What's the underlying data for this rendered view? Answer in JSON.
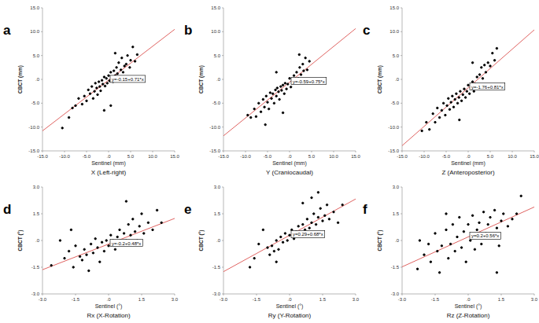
{
  "chart_data": [
    {
      "type": "scatter",
      "panel_label": "a",
      "title": "X (Left-right)",
      "x_label": "Sentinel (mm)",
      "y_label": "CBCT (mm)",
      "annotation": "y=-0.15+0.71*x",
      "fit": {
        "intercept": -0.15,
        "slope": 0.71,
        "color": "#e06462"
      },
      "color": "#000000",
      "marker": "circle",
      "grid": false,
      "xlim": [
        -15,
        15
      ],
      "ylim": [
        -15,
        15
      ],
      "xticks": [
        {
          "value": -15,
          "label": "-15.0"
        },
        {
          "value": -10,
          "label": "-10.0"
        },
        {
          "value": -5,
          "label": "-5.0"
        },
        {
          "value": 0,
          "label": ".0"
        },
        {
          "value": 5,
          "label": "5.0"
        },
        {
          "value": 10,
          "label": "10.0"
        },
        {
          "value": 15,
          "label": "15.0"
        }
      ],
      "yticks": [
        {
          "value": -15,
          "label": "-15.0"
        },
        {
          "value": -10,
          "label": "-10.0"
        },
        {
          "value": -5,
          "label": "-5.0"
        },
        {
          "value": 0,
          "label": ".0"
        },
        {
          "value": 5,
          "label": "5.0"
        },
        {
          "value": 10,
          "label": "10.0"
        },
        {
          "value": 15,
          "label": "15.0"
        }
      ],
      "x": [
        -10.5,
        -9.0,
        -8.2,
        -7.5,
        -6.8,
        -6.0,
        -5.5,
        -5.0,
        -4.6,
        -4.2,
        -3.8,
        -3.5,
        -3.2,
        -3.0,
        -2.7,
        -2.5,
        -2.2,
        -2.0,
        -1.8,
        -1.5,
        -1.3,
        -1.0,
        -0.8,
        -0.5,
        -0.3,
        0,
        0.2,
        0.5,
        0.8,
        1.0,
        1.2,
        1.5,
        1.8,
        2.0,
        2.3,
        2.5,
        2.8,
        3.0,
        3.3,
        3.6,
        4.0,
        4.3,
        4.8,
        5.0,
        5.5,
        6.0,
        6.5,
        1.5,
        -1.0,
        0.5
      ],
      "values": [
        -10.2,
        -8.0,
        -6.0,
        -5.5,
        -4.0,
        -5.2,
        -3.5,
        -4.5,
        -2.2,
        -3.0,
        -1.5,
        -4.0,
        -2.5,
        -0.8,
        -1.8,
        -3.2,
        -0.5,
        -1.5,
        -2.4,
        -0.2,
        -1.0,
        0.5,
        -1.4,
        0.2,
        -0.8,
        0.8,
        -0.3,
        1.5,
        0.3,
        -0.5,
        1.8,
        0.8,
        2.5,
        1.2,
        3.5,
        0.5,
        2.0,
        4.5,
        1.5,
        2.8,
        3.2,
        5.0,
        2.5,
        4.0,
        6.8,
        3.8,
        5.2,
        5.5,
        -6.5,
        -5.5
      ]
    },
    {
      "type": "scatter",
      "panel_label": "b",
      "title": "Y (Craniocaudal)",
      "x_label": "Sentinel (mm)",
      "y_label": "CBCT (mm)",
      "annotation": "y=-0.59+0.75*x",
      "fit": {
        "intercept": -0.59,
        "slope": 0.75,
        "color": "#e06462"
      },
      "color": "#000000",
      "marker": "circle",
      "grid": false,
      "xlim": [
        -15,
        15
      ],
      "ylim": [
        -15,
        15
      ],
      "xticks": [
        {
          "value": -15,
          "label": "-15.0"
        },
        {
          "value": -10,
          "label": "-10.0"
        },
        {
          "value": -5,
          "label": "-5.0"
        },
        {
          "value": 0,
          "label": ".0"
        },
        {
          "value": 5,
          "label": "5.0"
        },
        {
          "value": 10,
          "label": "10.0"
        },
        {
          "value": 15,
          "label": "15.0"
        }
      ],
      "yticks": [
        {
          "value": -15,
          "label": "-15.0"
        },
        {
          "value": -10,
          "label": "-10.0"
        },
        {
          "value": -5,
          "label": "-5.0"
        },
        {
          "value": 0,
          "label": ".0"
        },
        {
          "value": 5,
          "label": "5.0"
        },
        {
          "value": 10,
          "label": "10.0"
        },
        {
          "value": 15,
          "label": "15.0"
        }
      ],
      "x": [
        -9.5,
        -8.8,
        -8.0,
        -7.6,
        -7.0,
        -6.5,
        -6.0,
        -5.7,
        -5.3,
        -5.0,
        -4.7,
        -4.4,
        -4.1,
        -3.8,
        -3.5,
        -3.2,
        -3.0,
        -2.8,
        -2.5,
        -2.3,
        -2.0,
        -1.8,
        -1.5,
        -1.2,
        -1.0,
        -0.7,
        -0.4,
        0,
        0.3,
        0.6,
        1.0,
        1.3,
        1.6,
        2.0,
        2.3,
        2.6,
        3.0,
        3.2,
        3.6,
        4.0,
        4.5,
        2.2,
        -3.0,
        -5.5,
        -1.5
      ],
      "values": [
        -7.5,
        -8.0,
        -6.2,
        -7.8,
        -5.0,
        -6.8,
        -4.2,
        -5.8,
        -3.5,
        -4.8,
        -6.2,
        -2.8,
        -4.0,
        -3.0,
        -5.0,
        -2.2,
        -3.5,
        -1.8,
        -2.6,
        -4.2,
        -1.5,
        -2.3,
        -1.2,
        -3.0,
        -0.8,
        -2.0,
        -1.0,
        0.2,
        -1.6,
        -0.4,
        0.8,
        -0.5,
        1.5,
        0.2,
        2.5,
        1.0,
        3.2,
        1.8,
        4.5,
        2.0,
        3.8,
        5.2,
        1.5,
        -9.5,
        -7.0
      ]
    },
    {
      "type": "scatter",
      "panel_label": "c",
      "title": "Z (Anteroposterior)",
      "x_label": "Sentinel (mm)",
      "y_label": "CBCT (mm)",
      "annotation": "y=-1.76+0.81*x",
      "fit": {
        "intercept": -1.76,
        "slope": 0.81,
        "color": "#e06462"
      },
      "color": "#000000",
      "marker": "circle",
      "grid": false,
      "xlim": [
        -15,
        15
      ],
      "ylim": [
        -15,
        15
      ],
      "xticks": [
        {
          "value": -15,
          "label": "-15.0"
        },
        {
          "value": -10,
          "label": "-10.0"
        },
        {
          "value": -5,
          "label": "-5.0"
        },
        {
          "value": 0,
          "label": ".0"
        },
        {
          "value": 5,
          "label": "5.0"
        },
        {
          "value": 10,
          "label": "10.0"
        },
        {
          "value": 15,
          "label": "15.0"
        }
      ],
      "yticks": [
        {
          "value": -15,
          "label": "-15.0"
        },
        {
          "value": -10,
          "label": "-10.0"
        },
        {
          "value": -5,
          "label": "-5.0"
        },
        {
          "value": 0,
          "label": ".0"
        },
        {
          "value": 5,
          "label": "5.0"
        },
        {
          "value": 10,
          "label": "10.0"
        },
        {
          "value": 15,
          "label": "15.0"
        }
      ],
      "x": [
        -10.5,
        -9.5,
        -8.8,
        -8.0,
        -7.5,
        -7.0,
        -6.5,
        -6.0,
        -5.6,
        -5.2,
        -4.8,
        -4.5,
        -4.2,
        -3.9,
        -3.6,
        -3.3,
        -3.0,
        -2.7,
        -2.4,
        -2.1,
        -1.8,
        -1.5,
        -1.2,
        -0.9,
        -0.6,
        -0.3,
        0,
        0.3,
        0.6,
        1.0,
        1.3,
        1.6,
        2.0,
        2.3,
        2.6,
        3.0,
        3.3,
        3.7,
        4.0,
        4.5,
        5.0,
        5.5,
        6.0,
        6.5,
        1.0,
        -2.0
      ],
      "values": [
        -10.8,
        -9.0,
        -10.5,
        -7.2,
        -9.0,
        -6.0,
        -8.0,
        -6.5,
        -5.0,
        -7.5,
        -5.5,
        -4.0,
        -6.3,
        -4.8,
        -3.5,
        -5.8,
        -4.2,
        -3.0,
        -5.0,
        -3.8,
        -2.5,
        -4.5,
        -3.2,
        -2.0,
        -3.8,
        -2.5,
        -1.2,
        -3.0,
        -1.8,
        -0.5,
        -2.5,
        -1.0,
        0.5,
        -1.5,
        1.0,
        2.5,
        0.2,
        3.0,
        1.5,
        3.5,
        2.8,
        5.5,
        4.0,
        6.5,
        3.5,
        -8.5
      ]
    },
    {
      "type": "scatter",
      "panel_label": "d",
      "title": "Rx (X-Rotation)",
      "x_label": "Sentinel (°)",
      "y_label": "CBCT (°)",
      "annotation": "y=-0.2+0.48*x",
      "fit": {
        "intercept": -0.2,
        "slope": 0.48,
        "color": "#e06462"
      },
      "color": "#000000",
      "marker": "circle",
      "grid": false,
      "xlim": [
        -3,
        3
      ],
      "ylim": [
        -3,
        3
      ],
      "xticks": [
        {
          "value": -3,
          "label": "-3.0"
        },
        {
          "value": -1.5,
          "label": "-1.5"
        },
        {
          "value": 0,
          "label": ".0"
        },
        {
          "value": 1.5,
          "label": "1.5"
        },
        {
          "value": 3,
          "label": "3.0"
        }
      ],
      "yticks": [
        {
          "value": -3,
          "label": "-3.0"
        },
        {
          "value": -1.5,
          "label": "-1.5"
        },
        {
          "value": 0,
          "label": ".0"
        },
        {
          "value": 1.5,
          "label": "1.5"
        },
        {
          "value": 3,
          "label": "3.0"
        }
      ],
      "x": [
        -2.6,
        -2.2,
        -2.0,
        -1.8,
        -1.6,
        -1.5,
        -1.3,
        -1.2,
        -1.1,
        -1.0,
        -0.9,
        -0.8,
        -0.7,
        -0.6,
        -0.5,
        -0.4,
        -0.3,
        -0.2,
        -0.1,
        0,
        0.1,
        0.2,
        0.3,
        0.4,
        0.5,
        0.6,
        0.7,
        0.8,
        0.9,
        1.0,
        1.1,
        1.2,
        1.3,
        1.4,
        1.5,
        1.6,
        1.8,
        2.0,
        2.2,
        2.4,
        0.8,
        -1.7
      ],
      "values": [
        -1.4,
        0.0,
        -1.0,
        -0.6,
        -1.5,
        -0.3,
        -0.9,
        -1.1,
        -0.5,
        -0.8,
        -1.7,
        -0.2,
        -0.7,
        0.1,
        -0.4,
        -1.2,
        -0.1,
        -0.6,
        0.0,
        -0.3,
        0.3,
        0.0,
        -0.5,
        0.2,
        0.6,
        -0.2,
        0.4,
        0.0,
        0.9,
        0.3,
        1.2,
        0.5,
        0.0,
        0.8,
        1.5,
        0.4,
        1.0,
        0.6,
        1.7,
        1.0,
        2.2,
        0.6
      ]
    },
    {
      "type": "scatter",
      "panel_label": "e",
      "title": "Ry (Y-Rotation)",
      "x_label": "Sentinel (°)",
      "y_label": "CBCT (°)",
      "annotation": "y=0.29+0.68*x",
      "fit": {
        "intercept": 0.29,
        "slope": 0.68,
        "color": "#e06462"
      },
      "color": "#000000",
      "marker": "circle",
      "grid": false,
      "xlim": [
        -3,
        3
      ],
      "ylim": [
        -3,
        3
      ],
      "xticks": [
        {
          "value": -3,
          "label": "-3.0"
        },
        {
          "value": -1.5,
          "label": "-1.5"
        },
        {
          "value": 0,
          "label": ".0"
        },
        {
          "value": 1.5,
          "label": "1.5"
        },
        {
          "value": 3,
          "label": "3.0"
        }
      ],
      "yticks": [
        {
          "value": -3,
          "label": "-3.0"
        },
        {
          "value": -1.5,
          "label": "-1.5"
        },
        {
          "value": 0,
          "label": ".0"
        },
        {
          "value": 1.5,
          "label": "1.5"
        },
        {
          "value": 3,
          "label": "3.0"
        }
      ],
      "x": [
        -1.6,
        -1.4,
        -1.2,
        -1.0,
        -0.9,
        -0.8,
        -0.7,
        -0.6,
        -0.5,
        -0.4,
        -0.3,
        -0.2,
        -0.1,
        0,
        0.1,
        0.2,
        0.3,
        0.4,
        0.5,
        0.6,
        0.7,
        0.8,
        0.9,
        1.0,
        1.1,
        1.2,
        1.3,
        1.4,
        1.5,
        1.6,
        1.7,
        1.8,
        2.0,
        2.2,
        2.4,
        1.0,
        1.3,
        0.6,
        -0.6,
        -1.8
      ],
      "values": [
        -1.0,
        -0.2,
        0.6,
        -0.4,
        -0.8,
        -0.3,
        -0.6,
        0.0,
        -0.5,
        0.2,
        -0.1,
        0.4,
        0.0,
        0.3,
        0.6,
        0.1,
        0.5,
        0.8,
        0.3,
        0.9,
        0.6,
        1.2,
        0.7,
        1.0,
        1.5,
        0.9,
        1.3,
        1.8,
        1.1,
        1.4,
        2.0,
        1.2,
        1.6,
        1.0,
        2.0,
        2.4,
        2.7,
        2.1,
        -1.2,
        -1.5
      ]
    },
    {
      "type": "scatter",
      "panel_label": "f",
      "title": "Rz (Z-Rotation)",
      "x_label": "Sentinel (°)",
      "y_label": "CBCT (°)",
      "annotation": "y=0.2+0.56*x",
      "fit": {
        "intercept": 0.2,
        "slope": 0.56,
        "color": "#e06462"
      },
      "color": "#000000",
      "marker": "circle",
      "grid": false,
      "xlim": [
        -3,
        3
      ],
      "ylim": [
        -3,
        3
      ],
      "xticks": [
        {
          "value": -3,
          "label": "-3.0"
        },
        {
          "value": -1.5,
          "label": "-1.5"
        },
        {
          "value": 0,
          "label": ".0"
        },
        {
          "value": 1.5,
          "label": "1.5"
        },
        {
          "value": 3,
          "label": "3.0"
        }
      ],
      "yticks": [
        {
          "value": -3,
          "label": "-3.0"
        },
        {
          "value": -1.5,
          "label": "-1.5"
        },
        {
          "value": 0,
          "label": ".0"
        },
        {
          "value": 1.5,
          "label": "1.5"
        },
        {
          "value": 3,
          "label": "3.0"
        }
      ],
      "x": [
        -2.3,
        -2.0,
        -1.8,
        -1.7,
        -1.5,
        -1.4,
        -1.3,
        -1.2,
        -1.0,
        -0.9,
        -0.8,
        -0.7,
        -0.6,
        -0.5,
        -0.4,
        -0.3,
        -0.2,
        -0.1,
        0,
        0.1,
        0.2,
        0.3,
        0.4,
        0.5,
        0.6,
        0.7,
        0.8,
        0.9,
        1.0,
        1.1,
        1.2,
        1.3,
        1.4,
        1.5,
        1.6,
        1.8,
        2.0,
        2.2,
        2.4,
        1.3,
        -1.0,
        -2.2
      ],
      "values": [
        -1.6,
        -0.8,
        -0.2,
        -1.2,
        0.4,
        -0.6,
        -1.8,
        -0.3,
        0.6,
        -1.0,
        -0.2,
        0.9,
        -0.6,
        0.2,
        1.3,
        -0.4,
        0.5,
        -1.2,
        0.9,
        0.0,
        1.4,
        -0.5,
        0.6,
        1.0,
        -0.2,
        1.6,
        0.4,
        0.9,
        1.3,
        0.2,
        1.7,
        0.7,
        -0.3,
        1.1,
        1.5,
        0.8,
        1.2,
        1.5,
        2.5,
        -1.8,
        1.5,
        0.0
      ]
    }
  ]
}
